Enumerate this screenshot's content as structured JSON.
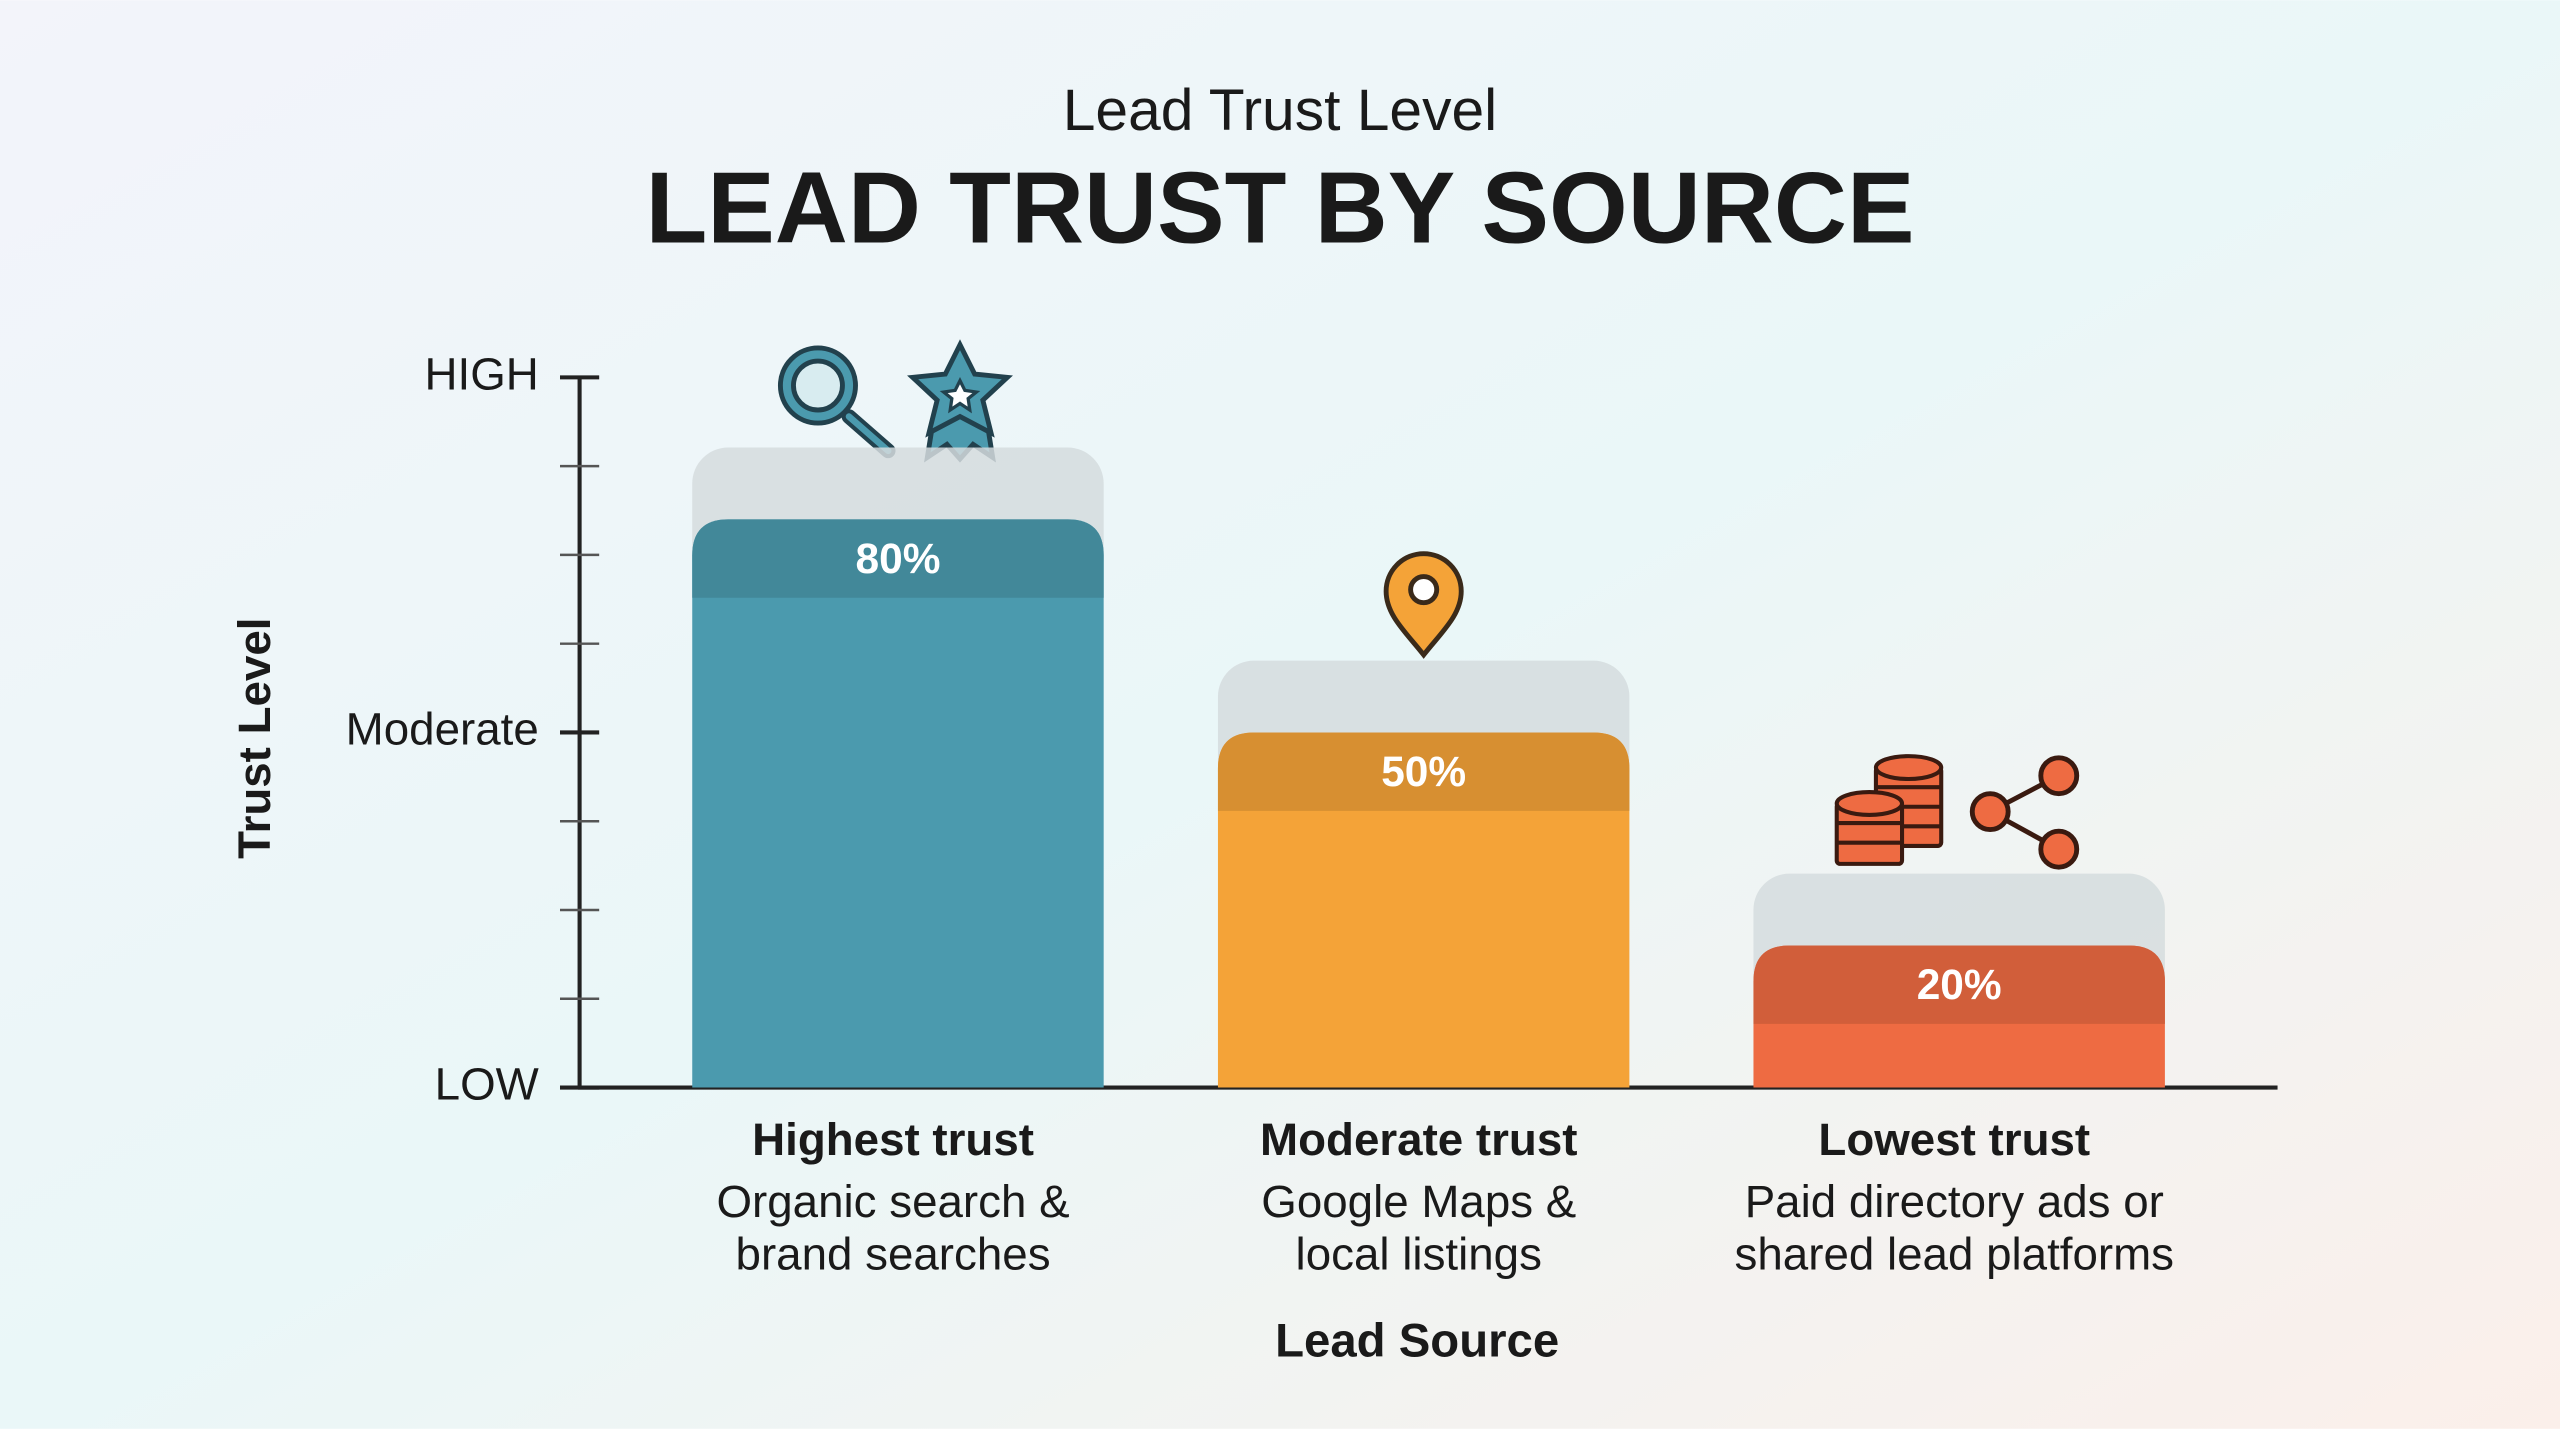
{
  "chart_data": {
    "type": "bar",
    "subtitle": "Lead Trust Level",
    "title": "LEAD TRUST BY SOURCE",
    "y_label": "Trust Level",
    "x_label": "Lead Source",
    "categories": [
      "Highest trust",
      "Moderate trust",
      "Lowest trust"
    ],
    "descriptions": [
      [
        "Organic search &",
        "brand searches"
      ],
      [
        "Google Maps &",
        "local listings"
      ],
      [
        "Paid directory ads or",
        "shared lead platforms"
      ]
    ],
    "values": [
      80,
      50,
      20
    ],
    "value_labels": [
      "80%",
      "50%",
      "20%"
    ],
    "colors": [
      "#4b9aae",
      "#f4a338",
      "#ee6b42"
    ],
    "ylim": [
      0,
      100
    ],
    "yticks": [
      {
        "value": 0,
        "label": "LOW"
      },
      {
        "value": 50,
        "label": "Moderate"
      },
      {
        "value": 100,
        "label": "HIGH"
      }
    ],
    "minor_yticks": [
      12.5,
      25,
      37.5,
      62.5,
      75,
      87.5
    ]
  }
}
